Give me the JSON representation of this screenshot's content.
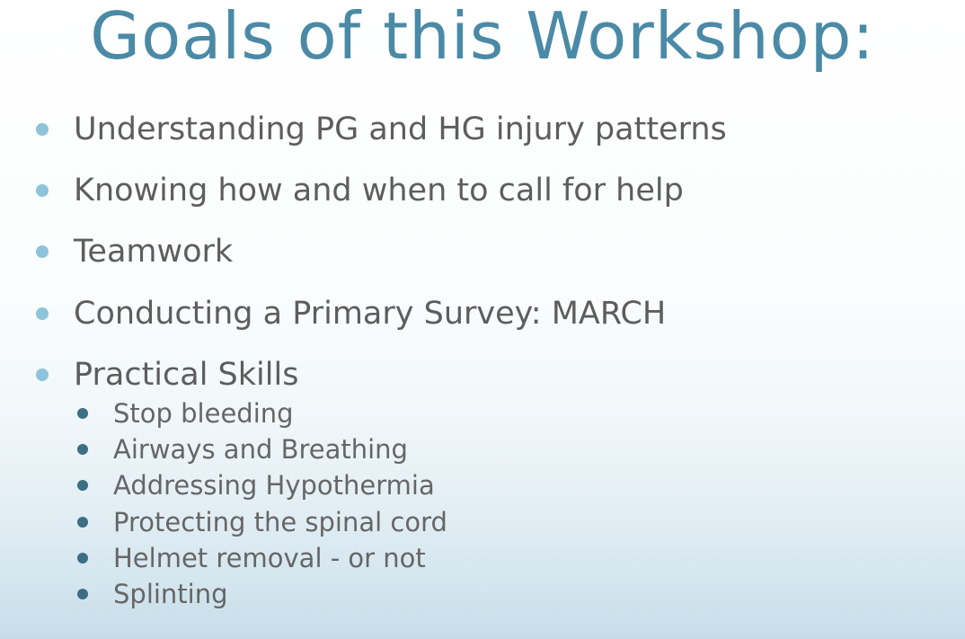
{
  "slide": {
    "title": "Goals of this Workshop:",
    "bullets": [
      "Understanding PG and HG injury patterns",
      "Knowing how and when to call for help",
      "Teamwork",
      "Conducting a Primary Survey:  MARCH",
      "Practical Skills"
    ],
    "sub_bullets": [
      "Stop bleeding",
      "Airways and Breathing",
      "Addressing Hypothermia",
      "Protecting the spinal cord",
      "Helmet removal - or not",
      "Splinting"
    ],
    "colors": {
      "title": "#4a8aa6",
      "bullet_dot": "#8ec3dc",
      "sub_bullet_dot": "#3c6f83",
      "text": "#5d5d5d"
    }
  }
}
